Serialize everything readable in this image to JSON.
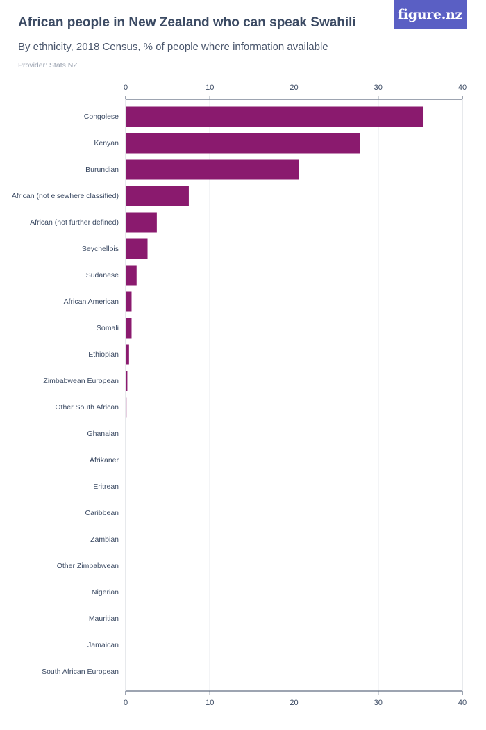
{
  "header": {
    "title": "African people in New Zealand who can speak Swahili",
    "subtitle": "By ethnicity, 2018 Census, % of people where information available",
    "provider": "Provider: Stats NZ",
    "brand": "figure.nz"
  },
  "colors": {
    "bar": "#8a1a6e",
    "grid": "#cfd3da",
    "axis": "#3b4a63",
    "brand_bg": "#5a5fc4"
  },
  "chart_data": {
    "type": "bar",
    "orientation": "horizontal",
    "categories": [
      "Congolese",
      "Kenyan",
      "Burundian",
      "African (not elsewhere classified)",
      "African (not further defined)",
      "Seychellois",
      "Sudanese",
      "African American",
      "Somali",
      "Ethiopian",
      "Zimbabwean European",
      "Other South African",
      "Ghanaian",
      "Afrikaner",
      "Eritrean",
      "Caribbean",
      "Zambian",
      "Other Zimbabwean",
      "Nigerian",
      "Mauritian",
      "Jamaican",
      "South African European"
    ],
    "values": [
      35.3,
      27.8,
      20.6,
      7.5,
      3.7,
      2.6,
      1.3,
      0.7,
      0.7,
      0.4,
      0.2,
      0.1,
      0,
      0,
      0,
      0,
      0,
      0,
      0,
      0,
      0,
      0
    ],
    "xlim": [
      0,
      40
    ],
    "xticks": [
      "0",
      "10",
      "20",
      "30",
      "40"
    ],
    "grid": true,
    "axis_position": "top and bottom"
  }
}
